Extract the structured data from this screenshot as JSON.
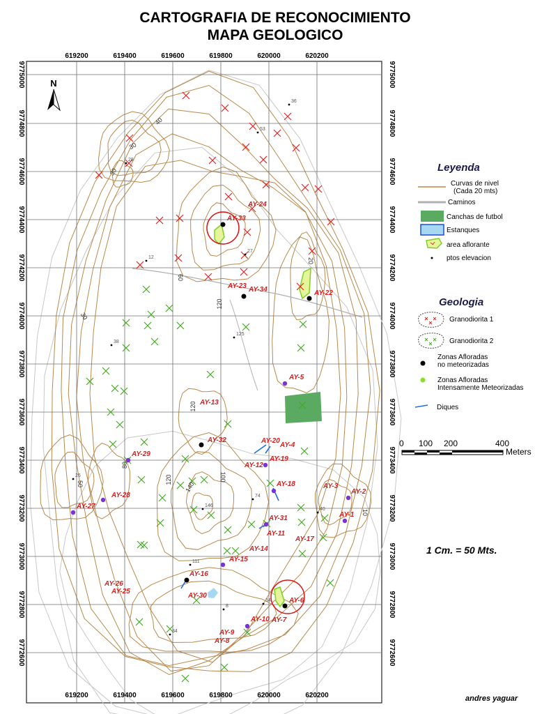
{
  "header": {
    "title_line1": "CARTOGRAFIA DE RECONOCIMIENTO",
    "title_line2": "MAPA GEOLOGICO"
  },
  "colors": {
    "contour": "#b8894a",
    "contour_faint": "#c8c8c8",
    "road": "#b0b0b0",
    "grid": "#707070",
    "cross_red": "#dd2222",
    "cross_green": "#44aa22",
    "label_red": "#d42020",
    "fresh_point": "#000000",
    "weathered_point": "#7a33d6",
    "dike": "#1f6fe0",
    "field": "#5aaa62",
    "pond": "#a6d8f2",
    "circle": "#dd1111"
  },
  "map": {
    "x_ticks": [
      "619200",
      "619400",
      "619600",
      "619800",
      "620000",
      "620200"
    ],
    "y_ticks": [
      "9775000",
      "9774800",
      "9774600",
      "9774400",
      "9774200",
      "9774000",
      "9773800",
      "9773600",
      "9773400",
      "9773200",
      "9773000",
      "9772800",
      "9772600"
    ],
    "north_label": "N",
    "contour_labels": [
      "40",
      "30",
      "30",
      "30",
      "60",
      "120",
      "50",
      "80",
      "120",
      "140",
      "100",
      "20",
      "10",
      "120"
    ],
    "elevation_labels": [
      "36",
      "53",
      "28",
      "12",
      "27",
      "125",
      "38",
      "26",
      "146",
      "74",
      "40",
      "111",
      "34",
      "8",
      "34"
    ],
    "sample_labels": [
      "AY-24",
      "AY-33",
      "AY-23",
      "AY-34",
      "AY-22",
      "AY-5",
      "AY-13",
      "AY-32",
      "AY-20",
      "AY-4",
      "AY-12",
      "AY-19",
      "AY-29",
      "AY-18",
      "AY-3",
      "AY-2",
      "AY-28",
      "AY-27",
      "AY-1",
      "AY-31",
      "AY-11",
      "AY-17",
      "AY-14",
      "AY-15",
      "AY-16",
      "AY-26",
      "AY-25",
      "AY-30",
      "AY-6",
      "AY-10",
      "AY-7",
      "AY-9",
      "AY-8"
    ]
  },
  "legend": {
    "heading": "Leyenda",
    "contours_line1": "Curvas de nivel",
    "contours_line2": "(Cada 20 mts)",
    "roads": "Caminos",
    "fields": "Canchas de futbol",
    "ponds": "Estanques",
    "outcrop_area": "area aflorante",
    "elevation_points": "ptos elevacion"
  },
  "geology": {
    "heading": "Geologia",
    "granodiorite_1": "Granodiorita 1",
    "granodiorite_2": "Granodiorita 2",
    "fresh_line1": "Zonas Afloradas",
    "fresh_line2": "no meteorizadas",
    "weathered_line1": "Zonas Afloradas",
    "weathered_line2": "Intensamente Meteorizadas",
    "dikes": "Diques"
  },
  "scale": {
    "labels": [
      "0",
      "100",
      "200",
      "400"
    ],
    "unit": "Meters",
    "ratio_text": "1 Cm. = 50 Mts."
  },
  "footer": {
    "author": "andres yaguar"
  }
}
